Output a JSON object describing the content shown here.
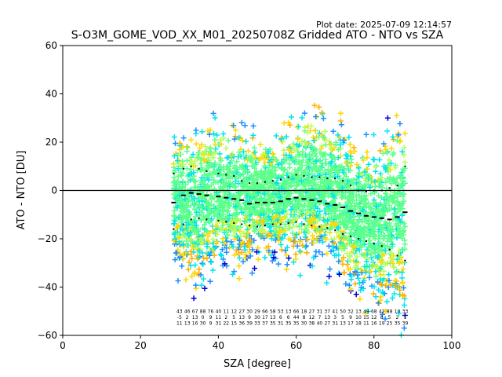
{
  "chart_data": {
    "type": "scatter",
    "title": "S-O3M_GOME_VOD_XX_M01_20250708Z Gridded ATO - NTO vs SZA",
    "plot_date": "Plot date: 2025-07-09 12:14:57",
    "xlabel": "SZA [degree]",
    "ylabel": "ATO - NTO [DU]",
    "xlim": [
      0,
      100
    ],
    "ylim": [
      -60,
      60
    ],
    "xticks": [
      0,
      20,
      40,
      60,
      80,
      100
    ],
    "yticks": [
      -60,
      -40,
      -20,
      0,
      20,
      40,
      60
    ],
    "xtick_labels": [
      "0",
      "20",
      "40",
      "60",
      "80",
      "100"
    ],
    "ytick_labels": [
      "−60",
      "−40",
      "−20",
      "0",
      "20",
      "40",
      "60"
    ],
    "marker": "+",
    "colors": [
      "#0000cd",
      "#1e90ff",
      "#00e5ee",
      "#5cff8a",
      "#b4ff5a",
      "#ffd700",
      "#ffb000"
    ],
    "zero_line": 0,
    "grid": false,
    "legend": "none",
    "scatter_cloud": {
      "x_range": [
        28.5,
        88
      ],
      "upper_edge": [
        [
          29,
          26
        ],
        [
          35,
          30
        ],
        [
          40,
          33
        ],
        [
          45,
          30
        ],
        [
          50,
          26
        ],
        [
          55,
          27
        ],
        [
          60,
          36
        ],
        [
          65,
          38
        ],
        [
          70,
          34
        ],
        [
          75,
          27
        ],
        [
          80,
          26
        ],
        [
          85,
          34
        ],
        [
          88,
          40
        ]
      ],
      "lower_edge": [
        [
          29,
          -37
        ],
        [
          35,
          -47
        ],
        [
          40,
          -40
        ],
        [
          45,
          -38
        ],
        [
          50,
          -33
        ],
        [
          55,
          -34
        ],
        [
          60,
          -36
        ],
        [
          65,
          -37
        ],
        [
          70,
          -40
        ],
        [
          75,
          -52
        ],
        [
          80,
          -58
        ],
        [
          85,
          -60
        ],
        [
          88,
          -60
        ]
      ]
    },
    "series": [
      {
        "role": "mean",
        "style": "dashes",
        "x": [
          28.5,
          31,
          33,
          35,
          37,
          40,
          42,
          44,
          46,
          48,
          50,
          52,
          54,
          56,
          58,
          60,
          62,
          64,
          66,
          68,
          70,
          72,
          74,
          76,
          78,
          80,
          82,
          84,
          86,
          88
        ],
        "y": [
          -5,
          -2,
          -1,
          -1.5,
          -2,
          -2.5,
          -3,
          -3.5,
          -4,
          -5.5,
          -5,
          -5,
          -5,
          -4.5,
          -3.5,
          -3,
          -3.5,
          -4,
          -4.5,
          -5.5,
          -6,
          -7,
          -8.5,
          -9.5,
          -10.5,
          -11,
          -11.5,
          -12,
          -11,
          -9
        ]
      },
      {
        "role": "mean_plus_std",
        "style": "dots",
        "x": [
          28.5,
          31,
          33,
          35,
          37,
          40,
          42,
          44,
          46,
          48,
          50,
          52,
          54,
          56,
          58,
          60,
          62,
          64,
          66,
          68,
          70,
          72,
          74,
          76,
          78,
          80,
          82,
          84,
          86,
          88
        ],
        "y": [
          7,
          9,
          10,
          9,
          8,
          7,
          6.5,
          6,
          4,
          3,
          3,
          3.5,
          4,
          4.5,
          5.5,
          6.5,
          6,
          5.5,
          5.5,
          5,
          5,
          4,
          2,
          0,
          -0.5,
          0,
          0,
          1,
          2,
          10
        ]
      },
      {
        "role": "mean_minus_std",
        "style": "dots",
        "x": [
          28.5,
          31,
          33,
          35,
          37,
          40,
          42,
          44,
          46,
          48,
          50,
          52,
          54,
          56,
          58,
          60,
          62,
          64,
          66,
          68,
          70,
          72,
          74,
          76,
          78,
          80,
          82,
          84,
          86,
          88
        ],
        "y": [
          -16,
          -14,
          -12,
          -11.5,
          -12,
          -12.5,
          -13,
          -13.5,
          -14,
          -14.5,
          -15,
          -14.5,
          -14,
          -14,
          -13.5,
          -13,
          -14,
          -14.5,
          -15,
          -15.5,
          -16.5,
          -18,
          -19,
          -20,
          -21,
          -22,
          -23,
          -24.5,
          -27,
          -29
        ]
      }
    ],
    "bottom_annotation_rows": [
      [
        "43",
        "46",
        "67",
        "88",
        "76",
        "40",
        "11",
        "12",
        "27",
        "30",
        "29",
        "66",
        "58",
        "53",
        "13",
        "66",
        "18",
        "27",
        "31",
        "37",
        "41",
        "50",
        "32",
        "13",
        "49",
        "68",
        "42",
        "88",
        "10",
        "33"
      ],
      [
        "-5",
        "2",
        "13",
        "0",
        "9",
        "11",
        "2",
        "5",
        "13",
        "9",
        "30",
        "17",
        "13",
        "6",
        "6",
        "44",
        "8",
        "12",
        "7",
        "13",
        "3",
        "5",
        "9",
        "10",
        "15",
        "12",
        "8",
        "5",
        "2",
        "1"
      ],
      [
        "11",
        "13",
        "16",
        "30",
        "9",
        "31",
        "22",
        "15",
        "36",
        "39",
        "33",
        "37",
        "35",
        "31",
        "35",
        "35",
        "30",
        "38",
        "40",
        "27",
        "31",
        "13",
        "17",
        "18",
        "11",
        "16",
        "19",
        "25",
        "35",
        "39"
      ]
    ]
  }
}
